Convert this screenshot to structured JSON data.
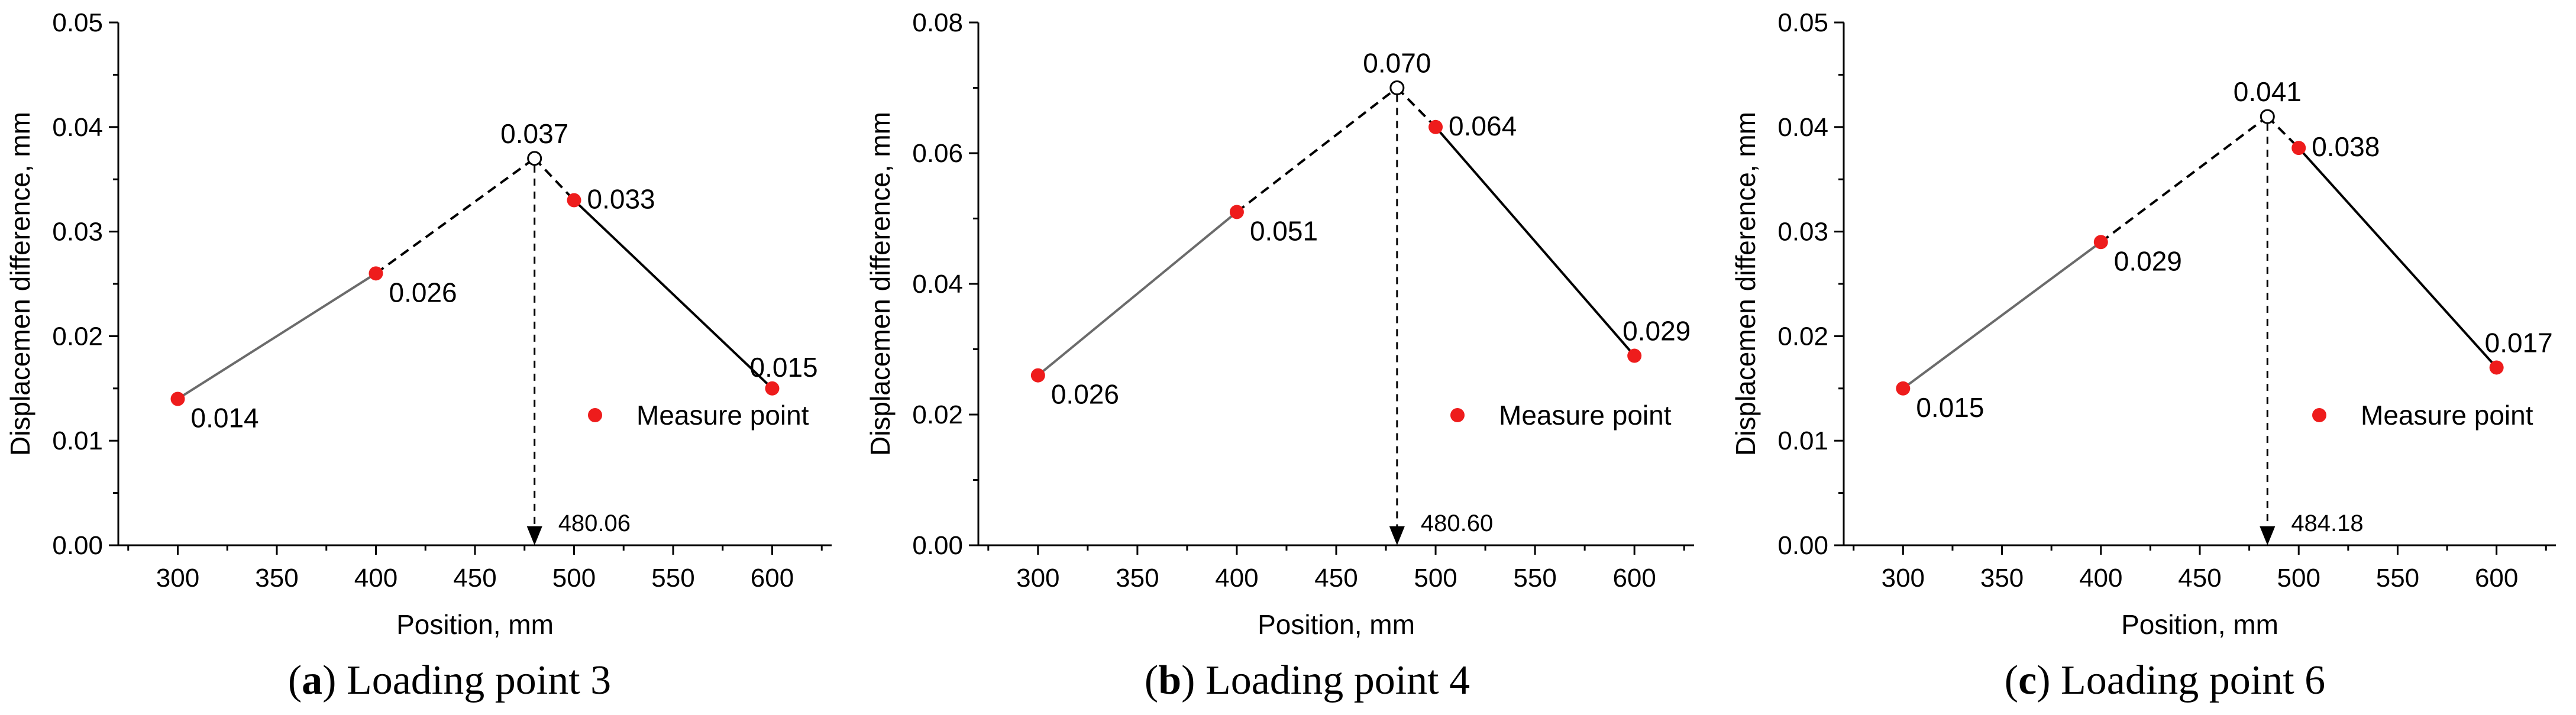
{
  "chart_data": [
    {
      "type": "line",
      "caption_letter": "a",
      "caption_text": " Loading point 3",
      "xlabel": "Position, mm",
      "ylabel": "Displacemen difference, mm",
      "xlim": [
        270,
        630
      ],
      "ylim": [
        0,
        0.05
      ],
      "xticks": [
        "300",
        "350",
        "400",
        "450",
        "500",
        "550",
        "600"
      ],
      "xtick_values": [
        300,
        350,
        400,
        450,
        500,
        550,
        600
      ],
      "yticks": [
        "0.00",
        "0.01",
        "0.02",
        "0.03",
        "0.04",
        "0.05"
      ],
      "ytick_values": [
        0,
        0.01,
        0.02,
        0.03,
        0.04,
        0.05
      ],
      "legend": {
        "label": "Measure point",
        "position": "right"
      },
      "series": [
        {
          "name": "Measure point",
          "x": [
            300,
            400,
            500,
            600
          ],
          "y": [
            0.014,
            0.026,
            0.033,
            0.015
          ],
          "labels": [
            "0.014",
            "0.026",
            "0.033",
            "0.015"
          ],
          "color": "#ee1c1c"
        }
      ],
      "peak": {
        "x": 480.06,
        "y": 0.037,
        "label": "0.037",
        "x_label": "480.06"
      }
    },
    {
      "type": "line",
      "caption_letter": "b",
      "caption_text": " Loading point 4",
      "xlabel": "Position, mm",
      "ylabel": "Displacemen difference, mm",
      "xlim": [
        270,
        630
      ],
      "ylim": [
        0,
        0.08
      ],
      "xticks": [
        "300",
        "350",
        "400",
        "450",
        "500",
        "550",
        "600"
      ],
      "xtick_values": [
        300,
        350,
        400,
        450,
        500,
        550,
        600
      ],
      "yticks": [
        "0.00",
        "0.02",
        "0.04",
        "0.06",
        "0.08"
      ],
      "ytick_values": [
        0,
        0.02,
        0.04,
        0.06,
        0.08
      ],
      "legend": {
        "label": "Measure point",
        "position": "right"
      },
      "series": [
        {
          "name": "Measure point",
          "x": [
            300,
            400,
            500,
            600
          ],
          "y": [
            0.026,
            0.051,
            0.064,
            0.029
          ],
          "labels": [
            "0.026",
            "0.051",
            "0.064",
            "0.029"
          ],
          "color": "#ee1c1c"
        }
      ],
      "peak": {
        "x": 480.6,
        "y": 0.07,
        "label": "0.070",
        "x_label": "480.60"
      }
    },
    {
      "type": "line",
      "caption_letter": "c",
      "caption_text": " Loading point 6",
      "xlabel": "Position, mm",
      "ylabel": "Displacemen difference, mm",
      "xlim": [
        270,
        630
      ],
      "ylim": [
        0,
        0.05
      ],
      "xticks": [
        "300",
        "350",
        "400",
        "450",
        "500",
        "550",
        "600"
      ],
      "xtick_values": [
        300,
        350,
        400,
        450,
        500,
        550,
        600
      ],
      "yticks": [
        "0.00",
        "0.01",
        "0.02",
        "0.03",
        "0.04",
        "0.05"
      ],
      "ytick_values": [
        0,
        0.01,
        0.02,
        0.03,
        0.04,
        0.05
      ],
      "legend": {
        "label": "Measure point",
        "position": "right"
      },
      "series": [
        {
          "name": "Measure point",
          "x": [
            300,
            400,
            500,
            600
          ],
          "y": [
            0.015,
            0.029,
            0.038,
            0.017
          ],
          "labels": [
            "0.015",
            "0.029",
            "0.038",
            "0.017"
          ],
          "color": "#ee1c1c"
        }
      ],
      "peak": {
        "x": 484.18,
        "y": 0.041,
        "label": "0.041",
        "x_label": "484.18"
      }
    }
  ]
}
